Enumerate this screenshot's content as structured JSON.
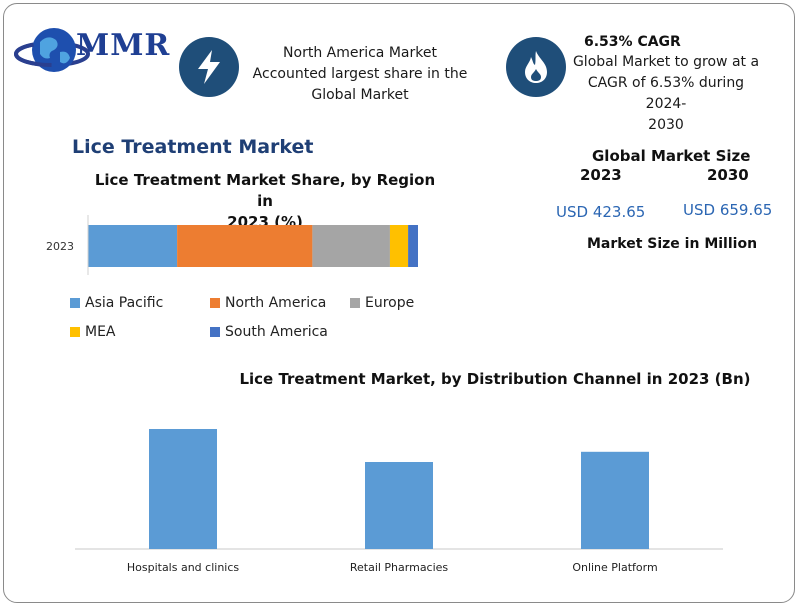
{
  "header": {
    "logo_text": "MMR",
    "highlight_1": {
      "icon": "lightning-icon",
      "lines": [
        "North America Market",
        "Accounted largest share in the",
        "Global Market"
      ]
    },
    "highlight_2": {
      "icon": "flame-icon",
      "title": "6.53% CAGR",
      "lines": [
        "Global Market to grow at a",
        "CAGR of 6.53% during 2024-",
        "2030"
      ]
    }
  },
  "section_title": "Lice Treatment Market",
  "kpi": {
    "title": "Global Market Size",
    "year_1": "2023",
    "year_2": "2030",
    "value_1": "USD 423.65",
    "value_2": "USD 659.65",
    "note": "Market Size in Million"
  },
  "colors": {
    "asia_pacific": "#5b9bd5",
    "north_america": "#ed7d31",
    "europe": "#a5a5a5",
    "mea": "#ffc000",
    "south_america": "#4472c4",
    "bars": "#5b9bd5",
    "icon_bg": "#1f4e79"
  },
  "chart_data": [
    {
      "type": "bar",
      "orientation": "horizontal-stacked",
      "title_lines": [
        "Lice Treatment Market Share, by Region in",
        "2023 (%)"
      ],
      "categories": [
        "2023"
      ],
      "series": [
        {
          "name": "Asia Pacific",
          "values": [
            27
          ]
        },
        {
          "name": "North America",
          "values": [
            41
          ]
        },
        {
          "name": "Europe",
          "values": [
            23.5
          ]
        },
        {
          "name": "MEA",
          "values": [
            5.5
          ]
        },
        {
          "name": "South America",
          "values": [
            3
          ]
        }
      ],
      "xlim": [
        0,
        100
      ],
      "legend": "bottom",
      "grid": false
    },
    {
      "type": "bar",
      "title": "Lice Treatment Market, by Distribution Channel in 2023 (Bn)",
      "categories": [
        "Hospitals and clinics",
        "Retail Pharmacies",
        "Online Platform"
      ],
      "values": [
        0.2,
        0.145,
        0.162
      ],
      "ylim": [
        0,
        0.25
      ],
      "grid": false
    }
  ]
}
